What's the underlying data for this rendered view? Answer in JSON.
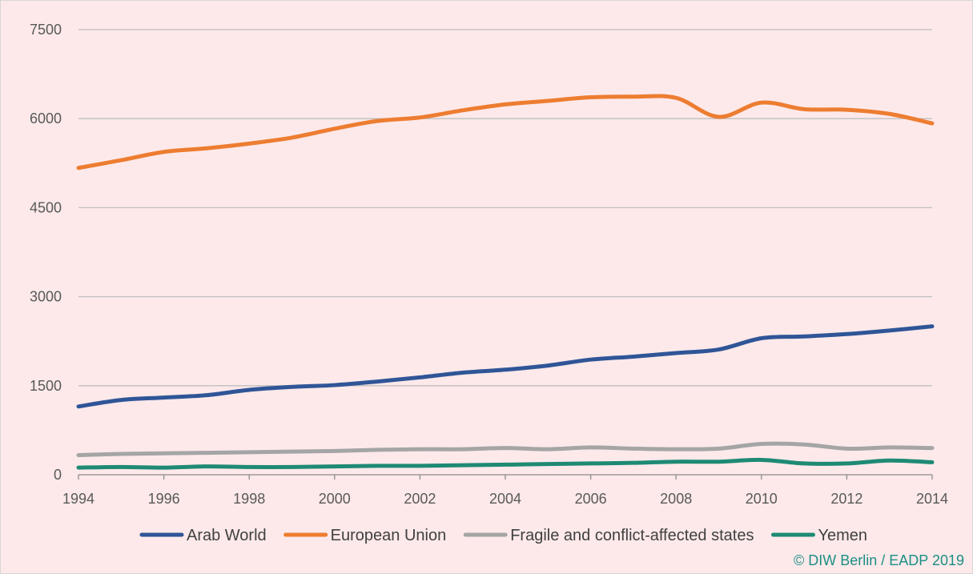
{
  "chart_data": {
    "type": "line",
    "x": [
      1994,
      1995,
      1996,
      1997,
      1998,
      1999,
      2000,
      2001,
      2002,
      2003,
      2004,
      2005,
      2006,
      2007,
      2008,
      2009,
      2010,
      2011,
      2012,
      2013,
      2014
    ],
    "series": [
      {
        "name": "Arab World",
        "color": "#2f5597",
        "values": [
          1150,
          1260,
          1300,
          1340,
          1430,
          1480,
          1510,
          1570,
          1640,
          1720,
          1770,
          1840,
          1940,
          1990,
          2050,
          2110,
          2300,
          2330,
          2370,
          2430,
          2500
        ]
      },
      {
        "name": "European Union",
        "color": "#ed7d31",
        "values": [
          5170,
          5300,
          5440,
          5500,
          5580,
          5680,
          5830,
          5960,
          6020,
          6140,
          6240,
          6300,
          6360,
          6370,
          6350,
          6030,
          6270,
          6160,
          6150,
          6080,
          5920
        ]
      },
      {
        "name": "Fragile and conflict-affected states",
        "color": "#a5a5a5",
        "values": [
          330,
          350,
          360,
          370,
          380,
          390,
          400,
          420,
          430,
          430,
          450,
          430,
          460,
          440,
          430,
          440,
          520,
          510,
          440,
          460,
          450
        ]
      },
      {
        "name": "Yemen",
        "color": "#1e8a74",
        "values": [
          120,
          130,
          120,
          140,
          130,
          130,
          140,
          150,
          150,
          160,
          170,
          180,
          190,
          200,
          220,
          220,
          250,
          190,
          190,
          240,
          210
        ]
      }
    ],
    "yticks": [
      0,
      1500,
      3000,
      4500,
      6000,
      7500
    ],
    "xticks": [
      1994,
      1996,
      1998,
      2000,
      2002,
      2004,
      2006,
      2008,
      2010,
      2012,
      2014
    ],
    "ylim": [
      0,
      7500
    ],
    "xlim": [
      1994,
      2014
    ],
    "grid": "horizontal",
    "legend_position": "bottom",
    "background_color": "#fde9ea",
    "source": "© DIW Berlin / EADP 2019"
  }
}
